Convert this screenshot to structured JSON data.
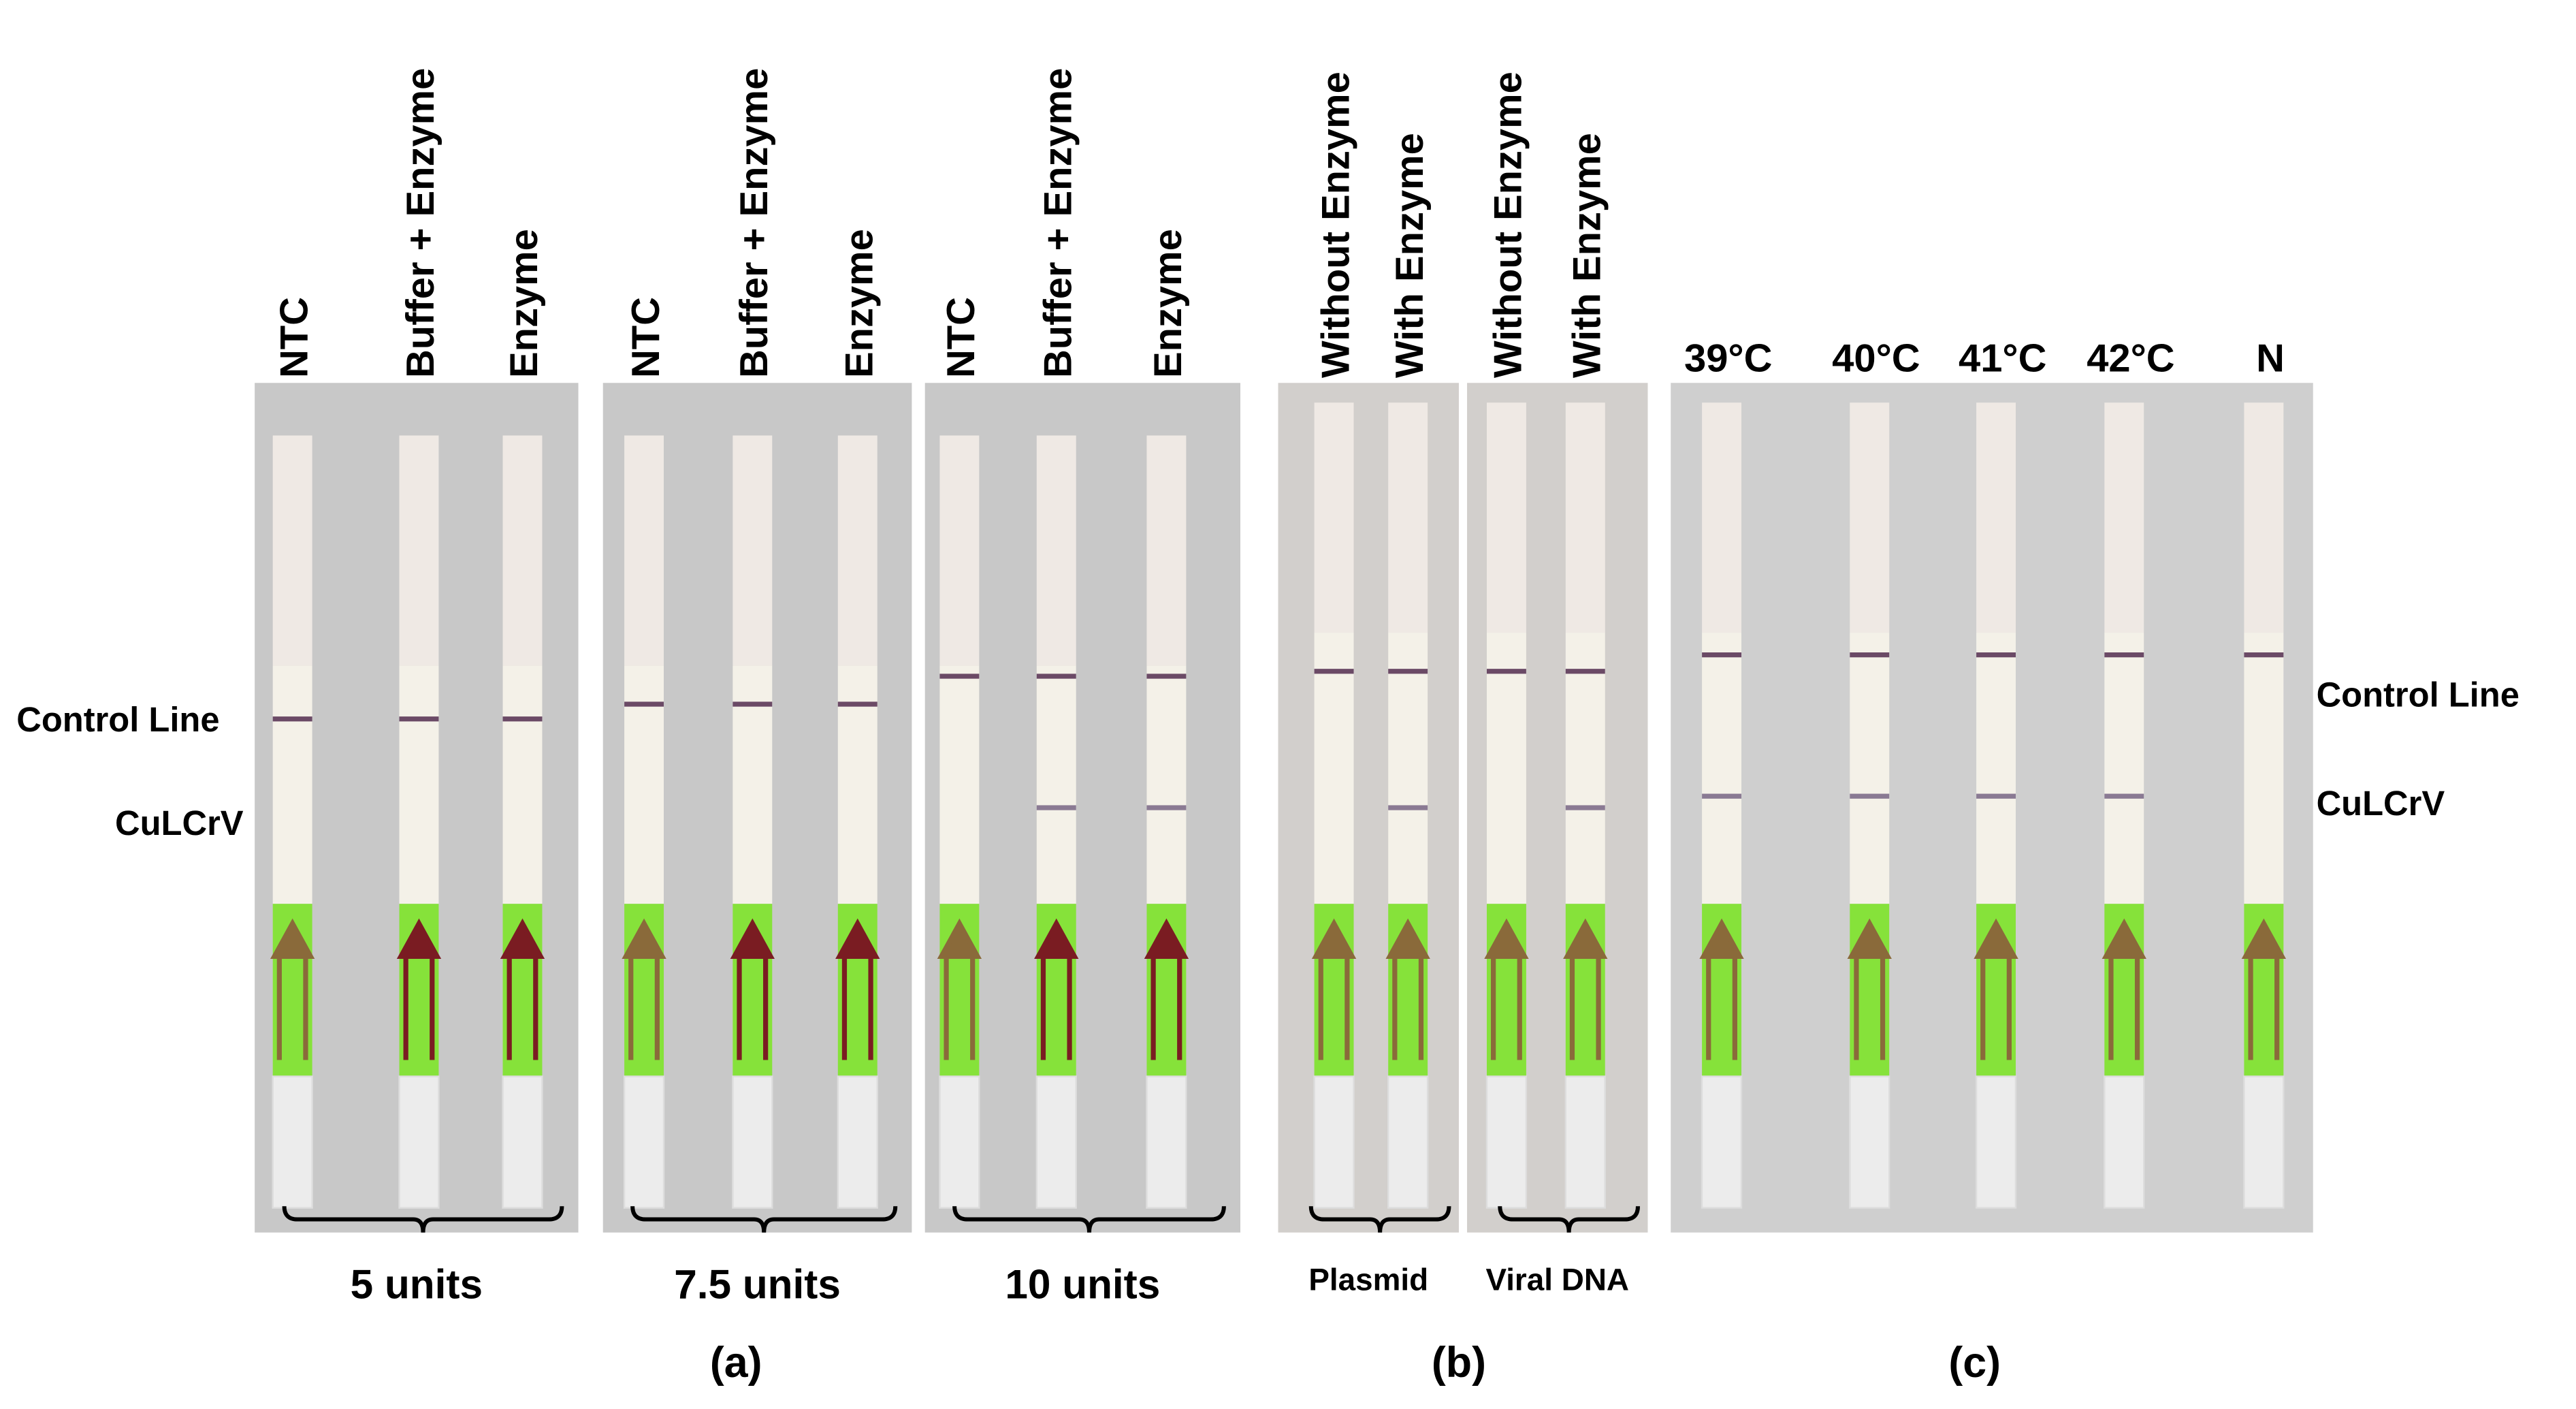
{
  "panel_a": {
    "groups": [
      {
        "lanes": [
          "NTC",
          "Buffer + Enzyme",
          "Enzyme"
        ],
        "label": "5 units"
      },
      {
        "lanes": [
          "NTC",
          "Buffer + Enzyme",
          "Enzyme"
        ],
        "label": "7.5 units"
      },
      {
        "lanes": [
          "NTC",
          "Buffer + Enzyme",
          "Enzyme"
        ],
        "label": "10 units"
      }
    ],
    "row_labels": [
      "Control Line",
      "CuLCrV"
    ],
    "caption": "(a)"
  },
  "panel_b": {
    "groups": [
      {
        "lanes": [
          "Without Enzyme",
          "With Enzyme"
        ],
        "label": "Plasmid"
      },
      {
        "lanes": [
          "Without Enzyme",
          "With Enzyme"
        ],
        "label": "Viral DNA"
      }
    ],
    "caption": "(b)"
  },
  "panel_c": {
    "lanes": [
      "39°C",
      "40°C",
      "41°C",
      "42°C",
      "N"
    ],
    "row_labels": [
      "Control Line",
      "CuLCrV"
    ],
    "caption": "(c)"
  }
}
